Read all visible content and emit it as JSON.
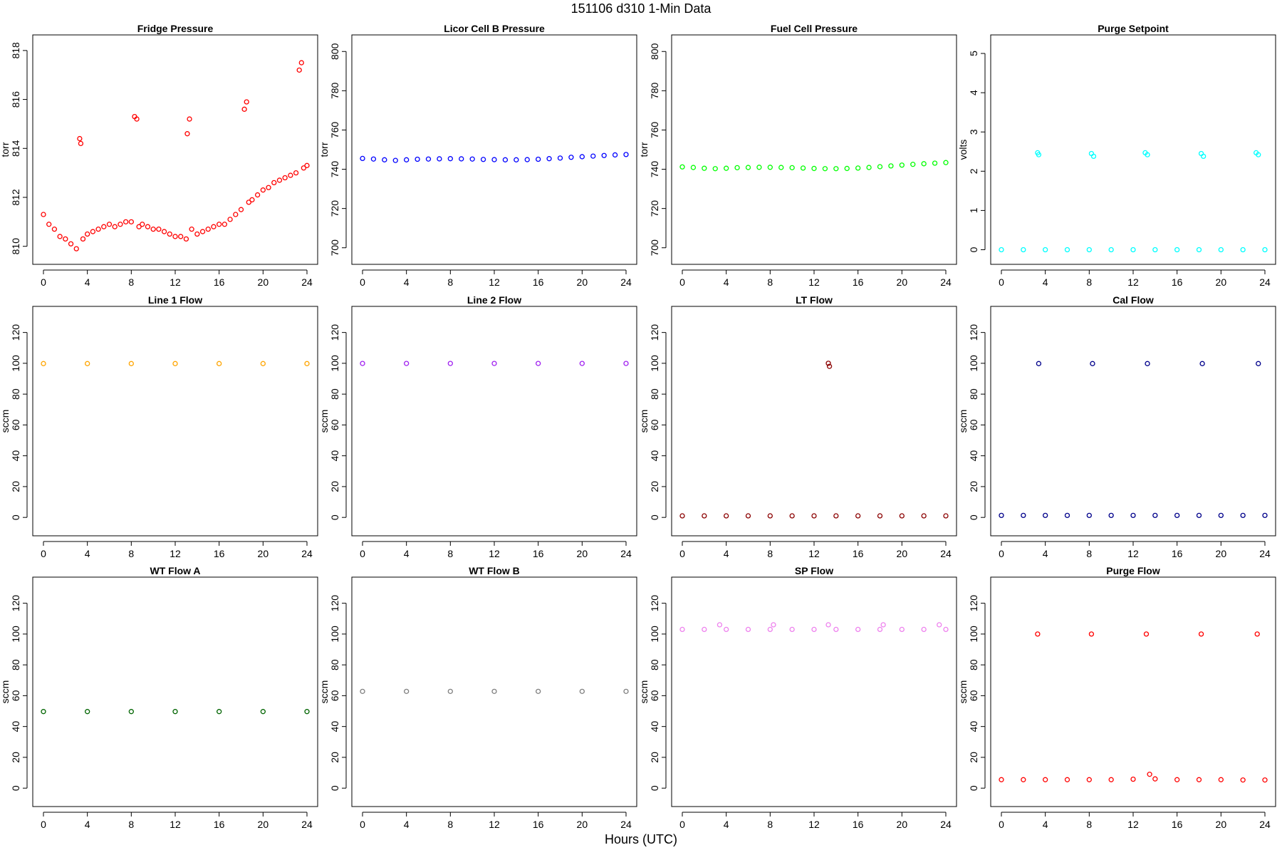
{
  "figure": {
    "title": "151106   d310   1-Min Data",
    "xlabel": "Hours (UTC)"
  },
  "chart_data": [
    {
      "type": "scatter",
      "title": "Fridge Pressure",
      "ylabel": "torr",
      "color": "#ff0000",
      "xlim": [
        0,
        24
      ],
      "ylim": [
        809.7,
        818.2
      ],
      "xticks": [
        0,
        4,
        8,
        12,
        16,
        20,
        24
      ],
      "yticks": [
        810,
        812,
        814,
        816,
        818
      ],
      "series": [
        {
          "x": [
            0,
            0.5,
            1,
            1.5,
            2,
            2.5,
            3,
            3.3,
            3.4,
            3.6,
            4,
            4.5,
            5,
            5.5,
            6,
            6.5,
            7,
            7.5,
            8,
            8.3,
            8.5,
            8.7,
            9,
            9.5,
            10,
            10.5,
            11,
            11.5,
            12,
            12.5,
            13,
            13.1,
            13.3,
            13.5,
            14,
            14.5,
            15,
            15.5,
            16,
            16.5,
            17,
            17.5,
            18,
            18.3,
            18.5,
            18.7,
            19,
            19.5,
            20,
            20.5,
            21,
            21.5,
            22,
            22.5,
            23,
            23.3,
            23.5,
            23.7,
            24
          ],
          "y": [
            811.3,
            810.9,
            810.7,
            810.4,
            810.3,
            810.1,
            809.9,
            814.4,
            814.2,
            810.3,
            810.5,
            810.6,
            810.7,
            810.8,
            810.9,
            810.8,
            810.9,
            811.0,
            811.0,
            815.3,
            815.2,
            810.8,
            810.9,
            810.8,
            810.7,
            810.7,
            810.6,
            810.5,
            810.4,
            810.4,
            810.3,
            814.6,
            815.2,
            810.7,
            810.5,
            810.6,
            810.7,
            810.8,
            810.9,
            810.9,
            811.1,
            811.3,
            811.5,
            815.6,
            815.9,
            811.8,
            811.9,
            812.1,
            812.3,
            812.4,
            812.6,
            812.7,
            812.8,
            812.9,
            813.0,
            817.2,
            817.5,
            813.2,
            813.3
          ]
        }
      ]
    },
    {
      "type": "scatter",
      "title": "Licor Cell B Pressure",
      "ylabel": "torr",
      "color": "#0000ff",
      "xlim": [
        0,
        24
      ],
      "ylim": [
        697,
        803
      ],
      "xticks": [
        0,
        4,
        8,
        12,
        16,
        20,
        24
      ],
      "yticks": [
        700,
        720,
        740,
        760,
        780,
        800
      ],
      "series": [
        {
          "x": [
            0,
            1,
            2,
            3,
            4,
            5,
            6,
            7,
            8,
            9,
            10,
            11,
            12,
            13,
            14,
            15,
            16,
            17,
            18,
            19,
            20,
            21,
            22,
            23,
            24
          ],
          "y": [
            745.5,
            745.2,
            744.8,
            744.5,
            744.8,
            745.1,
            745.2,
            745.3,
            745.4,
            745.3,
            745.2,
            745.0,
            744.9,
            744.8,
            744.8,
            744.9,
            745.1,
            745.4,
            745.7,
            746.1,
            746.4,
            746.7,
            747.0,
            747.3,
            747.5
          ]
        }
      ]
    },
    {
      "type": "scatter",
      "title": "Fuel Cell Pressure",
      "ylabel": "torr",
      "color": "#00ff00",
      "xlim": [
        0,
        24
      ],
      "ylim": [
        697,
        803
      ],
      "xticks": [
        0,
        4,
        8,
        12,
        16,
        20,
        24
      ],
      "yticks": [
        700,
        720,
        740,
        760,
        780,
        800
      ],
      "series": [
        {
          "x": [
            0,
            1,
            2,
            3,
            4,
            5,
            6,
            7,
            8,
            9,
            10,
            11,
            12,
            13,
            14,
            15,
            16,
            17,
            18,
            19,
            20,
            21,
            22,
            23,
            24
          ],
          "y": [
            741.2,
            740.9,
            740.5,
            740.3,
            740.5,
            740.8,
            740.9,
            741.0,
            741.0,
            740.9,
            740.8,
            740.6,
            740.4,
            740.3,
            740.3,
            740.4,
            740.6,
            740.9,
            741.3,
            741.7,
            742.1,
            742.5,
            742.8,
            743.1,
            743.4
          ]
        }
      ]
    },
    {
      "type": "scatter",
      "title": "Purge Setpoint",
      "ylabel": "volts",
      "color": "#00ffff",
      "xlim": [
        0,
        24
      ],
      "ylim": [
        -0.1,
        5.2
      ],
      "xticks": [
        0,
        4,
        8,
        12,
        16,
        20,
        24
      ],
      "yticks": [
        0,
        1,
        2,
        3,
        4,
        5
      ],
      "series": [
        {
          "x": [
            0,
            2,
            4,
            6,
            8,
            10,
            12,
            14,
            16,
            18,
            20,
            22,
            24,
            3.3,
            3.4,
            8.2,
            8.4,
            13.1,
            13.3,
            18.2,
            18.4,
            23.2,
            23.4
          ],
          "y": [
            0,
            0,
            0,
            0,
            0,
            0,
            0,
            0,
            0,
            0,
            0,
            0,
            0,
            2.47,
            2.42,
            2.45,
            2.38,
            2.47,
            2.42,
            2.45,
            2.38,
            2.47,
            2.42
          ]
        }
      ]
    },
    {
      "type": "scatter",
      "title": "Line 1 Flow",
      "ylabel": "sccm",
      "color": "#ffa500",
      "xlim": [
        0,
        24
      ],
      "ylim": [
        -5,
        130
      ],
      "xticks": [
        0,
        4,
        8,
        12,
        16,
        20,
        24
      ],
      "yticks": [
        0,
        20,
        40,
        60,
        80,
        100,
        120
      ],
      "series": [
        {
          "x": [
            0,
            4,
            8,
            12,
            16,
            20,
            24
          ],
          "y": [
            99.8,
            99.8,
            99.8,
            99.8,
            99.8,
            99.8,
            99.8
          ]
        }
      ]
    },
    {
      "type": "scatter",
      "title": "Line 2 Flow",
      "ylabel": "sccm",
      "color": "#a020f0",
      "xlim": [
        0,
        24
      ],
      "ylim": [
        -5,
        130
      ],
      "xticks": [
        0,
        4,
        8,
        12,
        16,
        20,
        24
      ],
      "yticks": [
        0,
        20,
        40,
        60,
        80,
        100,
        120
      ],
      "series": [
        {
          "x": [
            0,
            4,
            8,
            12,
            16,
            20,
            24
          ],
          "y": [
            99.9,
            99.9,
            99.9,
            99.9,
            99.9,
            99.9,
            99.9
          ]
        }
      ]
    },
    {
      "type": "scatter",
      "title": "LT Flow",
      "ylabel": "sccm",
      "color": "#8b0000",
      "xlim": [
        0,
        24
      ],
      "ylim": [
        -5,
        130
      ],
      "xticks": [
        0,
        4,
        8,
        12,
        16,
        20,
        24
      ],
      "yticks": [
        0,
        20,
        40,
        60,
        80,
        100,
        120
      ],
      "series": [
        {
          "x": [
            0,
            2,
            4,
            6,
            8,
            10,
            12,
            14,
            16,
            18,
            20,
            22,
            24,
            13.3,
            13.4
          ],
          "y": [
            1,
            1,
            1,
            1,
            1,
            1,
            1,
            1,
            1,
            1,
            1,
            1,
            1,
            100,
            98
          ]
        }
      ]
    },
    {
      "type": "scatter",
      "title": "Cal Flow",
      "ylabel": "sccm",
      "color": "#00008b",
      "xlim": [
        0,
        24
      ],
      "ylim": [
        -5,
        130
      ],
      "xticks": [
        0,
        4,
        8,
        12,
        16,
        20,
        24
      ],
      "yticks": [
        0,
        20,
        40,
        60,
        80,
        100,
        120
      ],
      "series": [
        {
          "x": [
            0,
            2,
            4,
            6,
            8,
            10,
            12,
            14,
            16,
            18,
            20,
            22,
            24,
            3.4,
            8.3,
            13.3,
            18.3,
            23.4
          ],
          "y": [
            1.3,
            1.3,
            1.3,
            1.3,
            1.3,
            1.3,
            1.3,
            1.3,
            1.3,
            1.3,
            1.3,
            1.3,
            1.3,
            99.8,
            99.8,
            99.8,
            99.8,
            99.8
          ]
        }
      ]
    },
    {
      "type": "scatter",
      "title": "WT Flow A",
      "ylabel": "sccm",
      "color": "#006400",
      "xlim": [
        0,
        24
      ],
      "ylim": [
        -5,
        130
      ],
      "xticks": [
        0,
        4,
        8,
        12,
        16,
        20,
        24
      ],
      "yticks": [
        0,
        20,
        40,
        60,
        80,
        100,
        120
      ],
      "series": [
        {
          "x": [
            0,
            4,
            8,
            12,
            16,
            20,
            24
          ],
          "y": [
            49.7,
            49.7,
            49.7,
            49.7,
            49.7,
            49.7,
            49.7
          ]
        }
      ]
    },
    {
      "type": "scatter",
      "title": "WT Flow B",
      "ylabel": "sccm",
      "color": "#808080",
      "xlim": [
        0,
        24
      ],
      "ylim": [
        -5,
        130
      ],
      "xticks": [
        0,
        4,
        8,
        12,
        16,
        20,
        24
      ],
      "yticks": [
        0,
        20,
        40,
        60,
        80,
        100,
        120
      ],
      "series": [
        {
          "x": [
            0,
            4,
            8,
            12,
            16,
            20,
            24
          ],
          "y": [
            62.8,
            62.8,
            62.8,
            62.8,
            62.8,
            62.8,
            62.8
          ]
        }
      ]
    },
    {
      "type": "scatter",
      "title": "SP Flow",
      "ylabel": "sccm",
      "color": "#ee82ee",
      "xlim": [
        0,
        24
      ],
      "ylim": [
        -5,
        130
      ],
      "xticks": [
        0,
        4,
        8,
        12,
        16,
        20,
        24
      ],
      "yticks": [
        0,
        20,
        40,
        60,
        80,
        100,
        120
      ],
      "series": [
        {
          "x": [
            0,
            2,
            4,
            6,
            8,
            10,
            12,
            14,
            16,
            18,
            20,
            22,
            24,
            3.4,
            8.3,
            13.3,
            18.3,
            23.4
          ],
          "y": [
            103,
            103,
            103,
            103,
            103,
            103,
            103,
            103,
            103,
            103,
            103,
            103,
            103,
            106,
            106,
            106,
            106,
            106
          ]
        }
      ]
    },
    {
      "type": "scatter",
      "title": "Purge Flow",
      "ylabel": "sccm",
      "color": "#ff0000",
      "xlim": [
        0,
        24
      ],
      "ylim": [
        -5,
        130
      ],
      "xticks": [
        0,
        4,
        8,
        12,
        16,
        20,
        24
      ],
      "yticks": [
        0,
        20,
        40,
        60,
        80,
        100,
        120
      ],
      "series": [
        {
          "x": [
            0,
            2,
            4,
            6,
            8,
            10,
            12,
            13.5,
            14,
            16,
            18,
            20,
            22,
            24,
            3.3,
            8.2,
            13.2,
            18.2,
            23.3
          ],
          "y": [
            5.5,
            5.5,
            5.5,
            5.5,
            5.5,
            5.5,
            5.8,
            9,
            6,
            5.5,
            5.5,
            5.5,
            5.3,
            5.3,
            100,
            100,
            100,
            100,
            100
          ]
        }
      ]
    }
  ]
}
